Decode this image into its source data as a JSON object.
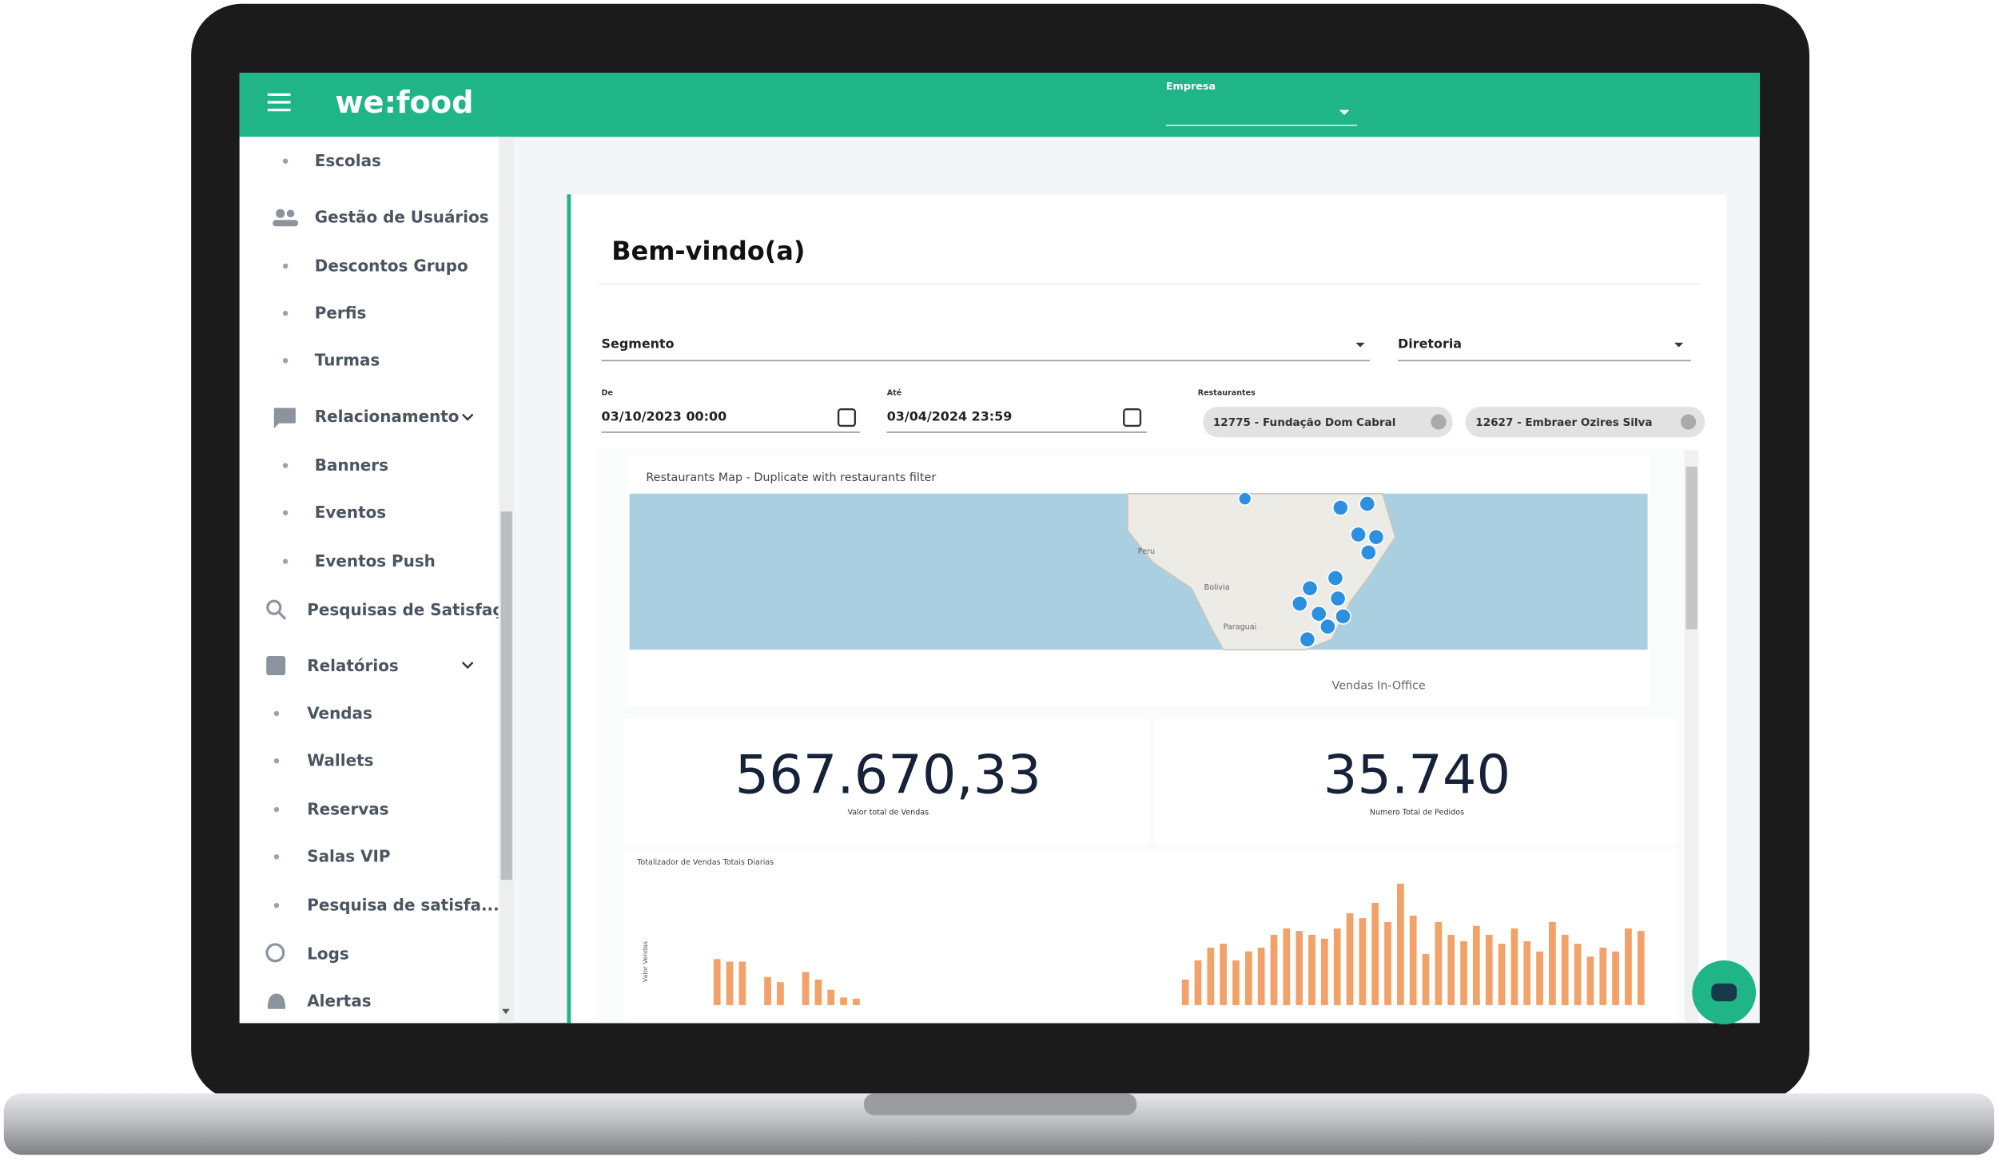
{
  "header": {
    "logo": "we:food",
    "company_label": "Empresa"
  },
  "sidebar": {
    "items": [
      {
        "label": "Escolas"
      },
      {
        "label": "Gestão de Usuários"
      },
      {
        "label": "Descontos Grupo"
      },
      {
        "label": "Perfis"
      },
      {
        "label": "Turmas"
      },
      {
        "label": "Relacionamento"
      },
      {
        "label": "Banners"
      },
      {
        "label": "Eventos"
      },
      {
        "label": "Eventos Push"
      },
      {
        "label": "Pesquisas de Satisfação"
      },
      {
        "label": "Relatórios"
      },
      {
        "label": "Vendas"
      },
      {
        "label": "Wallets"
      },
      {
        "label": "Reservas"
      },
      {
        "label": "Salas VIP"
      },
      {
        "label": "Pesquisa de satisfa..."
      },
      {
        "label": "Logs"
      },
      {
        "label": "Alertas"
      }
    ]
  },
  "dashboard": {
    "title": "Bem-vindo(a)",
    "filters": {
      "segment": "Segmento",
      "board": "Diretoria",
      "from_label": "De",
      "from_value": "03/10/2023 00:00",
      "to_label": "Até",
      "to_value": "03/04/2024 23:59",
      "restaurants_label": "Restaurantes",
      "restaurants": [
        "12775 - Fundação Dom Cabral",
        "12627 - Embraer Ozires Silva"
      ]
    },
    "map": {
      "title": "Restaurants Map - Duplicate with restaurants filter",
      "labels": [
        "Peru",
        "Bolivia",
        "Paraguai"
      ]
    },
    "in_office_label": "Vendas In-Office",
    "kpis": [
      {
        "value": "567.670,33",
        "label": "Valor total de Vendas"
      },
      {
        "value": "35.740",
        "label": "Numero Total de Pedidos"
      }
    ],
    "sales_chart": {
      "title": "Totalizador de Vendas Totais Diarias",
      "y_label": "Valor Vendas",
      "color": "#f2a268",
      "values": [
        36,
        34,
        34,
        0,
        22,
        18,
        0,
        26,
        20,
        12,
        6,
        5,
        0,
        0,
        0,
        0,
        0,
        0,
        0,
        0,
        0,
        0,
        0,
        0,
        0,
        0,
        0,
        0,
        0,
        0,
        0,
        0,
        0,
        0,
        0,
        0,
        0,
        20,
        35,
        45,
        48,
        35,
        42,
        45,
        55,
        60,
        58,
        55,
        52,
        60,
        72,
        68,
        80,
        65,
        95,
        70,
        40,
        65,
        55,
        50,
        62,
        55,
        48,
        60,
        50,
        42,
        65,
        55,
        48,
        38,
        45,
        42,
        60,
        58
      ]
    }
  }
}
